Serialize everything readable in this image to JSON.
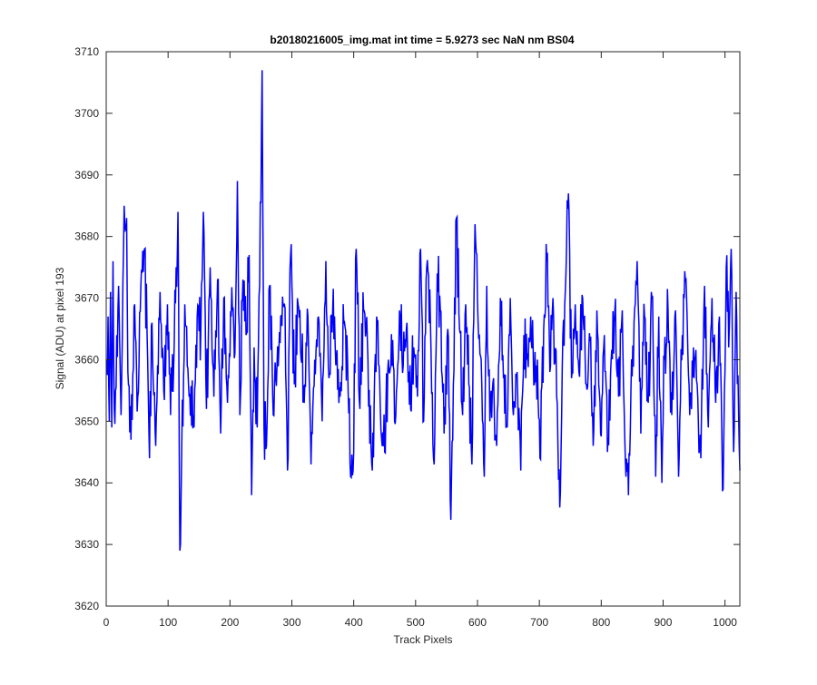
{
  "chart_data": {
    "type": "line",
    "title": "b20180216005_img.mat int time = 5.9273 sec  NaN nm BS04",
    "xlabel": "Track Pixels",
    "ylabel": "Signal (ADU) at pixel 193",
    "xlim": [
      0,
      1024
    ],
    "ylim": [
      3620,
      3710
    ],
    "xticks": [
      0,
      100,
      200,
      300,
      400,
      500,
      600,
      700,
      800,
      900,
      1000
    ],
    "yticks": [
      3620,
      3630,
      3640,
      3650,
      3660,
      3670,
      3680,
      3690,
      3700,
      3710
    ],
    "grid": false,
    "legend": "none",
    "series": [
      {
        "color": "#0000ff",
        "x_start": 1,
        "x_step": 1,
        "n_points": 1024,
        "baseline": 3662,
        "y_points": [
          [
            1,
            3660
          ],
          [
            3,
            3667
          ],
          [
            5,
            3650
          ],
          [
            7,
            3671
          ],
          [
            9,
            3649
          ],
          [
            11,
            3676
          ],
          [
            13,
            3652
          ],
          [
            20,
            3672
          ],
          [
            24,
            3651
          ],
          [
            28,
            3678
          ],
          [
            31,
            3681
          ],
          [
            33,
            3683
          ],
          [
            35,
            3658
          ],
          [
            40,
            3647
          ],
          [
            46,
            3669
          ],
          [
            51,
            3654
          ],
          [
            56,
            3672
          ],
          [
            62,
            3678
          ],
          [
            67,
            3660
          ],
          [
            70,
            3644
          ],
          [
            74,
            3666
          ],
          [
            80,
            3646
          ],
          [
            87,
            3671
          ],
          [
            93,
            3655
          ],
          [
            99,
            3669
          ],
          [
            104,
            3651
          ],
          [
            110,
            3663
          ],
          [
            116,
            3684
          ],
          [
            119,
            3629
          ],
          [
            122,
            3645
          ],
          [
            127,
            3669
          ],
          [
            134,
            3654
          ],
          [
            141,
            3651
          ],
          [
            147,
            3667
          ],
          [
            153,
            3665
          ],
          [
            157,
            3684
          ],
          [
            162,
            3652
          ],
          [
            168,
            3675
          ],
          [
            174,
            3654
          ],
          [
            180,
            3673
          ],
          [
            185,
            3648
          ],
          [
            190,
            3670
          ],
          [
            196,
            3653
          ],
          [
            202,
            3667
          ],
          [
            208,
            3661
          ],
          [
            212,
            3689
          ],
          [
            216,
            3651
          ],
          [
            221,
            3673
          ],
          [
            226,
            3664
          ],
          [
            231,
            3677
          ],
          [
            235,
            3638
          ],
          [
            239,
            3662
          ],
          [
            244,
            3649
          ],
          [
            248,
            3672
          ],
          [
            252,
            3707
          ],
          [
            255,
            3649
          ],
          [
            259,
            3646
          ],
          [
            264,
            3672
          ],
          [
            270,
            3651
          ],
          [
            276,
            3659
          ],
          [
            282,
            3667
          ],
          [
            288,
            3669
          ],
          [
            293,
            3642
          ],
          [
            298,
            3677
          ],
          [
            304,
            3656
          ],
          [
            310,
            3669
          ],
          [
            315,
            3660
          ],
          [
            321,
            3656
          ],
          [
            326,
            3667
          ],
          [
            331,
            3643
          ],
          [
            337,
            3660
          ],
          [
            343,
            3667
          ],
          [
            349,
            3650
          ],
          [
            355,
            3676
          ],
          [
            360,
            3657
          ],
          [
            366,
            3668
          ],
          [
            372,
            3660
          ],
          [
            378,
            3654
          ],
          [
            384,
            3666
          ],
          [
            390,
            3660
          ],
          [
            395,
            3641
          ],
          [
            399,
            3642
          ],
          [
            404,
            3678
          ],
          [
            410,
            3652
          ],
          [
            416,
            3668
          ],
          [
            423,
            3660
          ],
          [
            430,
            3642
          ],
          [
            437,
            3667
          ],
          [
            443,
            3652
          ],
          [
            450,
            3645
          ],
          [
            456,
            3660
          ],
          [
            462,
            3659
          ],
          [
            468,
            3651
          ],
          [
            474,
            3668
          ],
          [
            480,
            3659
          ],
          [
            486,
            3666
          ],
          [
            492,
            3652
          ],
          [
            497,
            3662
          ],
          [
            503,
            3654
          ],
          [
            508,
            3678
          ],
          [
            513,
            3650
          ],
          [
            518,
            3675
          ],
          [
            524,
            3666
          ],
          [
            530,
            3643
          ],
          [
            535,
            3674
          ],
          [
            540,
            3668
          ],
          [
            546,
            3648
          ],
          [
            552,
            3665
          ],
          [
            557,
            3634
          ],
          [
            561,
            3656
          ],
          [
            566,
            3683
          ],
          [
            571,
            3665
          ],
          [
            576,
            3651
          ],
          [
            581,
            3669
          ],
          [
            586,
            3656
          ],
          [
            591,
            3643
          ],
          [
            596,
            3682
          ],
          [
            601,
            3666
          ],
          [
            606,
            3660
          ],
          [
            611,
            3641
          ],
          [
            615,
            3672
          ],
          [
            620,
            3650
          ],
          [
            626,
            3657
          ],
          [
            631,
            3646
          ],
          [
            637,
            3670
          ],
          [
            642,
            3657
          ],
          [
            648,
            3649
          ],
          [
            653,
            3670
          ],
          [
            658,
            3651
          ],
          [
            664,
            3658
          ],
          [
            670,
            3642
          ],
          [
            675,
            3664
          ],
          [
            680,
            3660
          ],
          [
            686,
            3667
          ],
          [
            692,
            3656
          ],
          [
            697,
            3660
          ],
          [
            701,
            3644
          ],
          [
            707,
            3665
          ],
          [
            712,
            3676
          ],
          [
            717,
            3658
          ],
          [
            722,
            3670
          ],
          [
            728,
            3654
          ],
          [
            733,
            3636
          ],
          [
            738,
            3664
          ],
          [
            743,
            3674
          ],
          [
            747,
            3687
          ],
          [
            752,
            3657
          ],
          [
            758,
            3669
          ],
          [
            764,
            3658
          ],
          [
            770,
            3670
          ],
          [
            776,
            3656
          ],
          [
            782,
            3663
          ],
          [
            787,
            3646
          ],
          [
            793,
            3668
          ],
          [
            799,
            3648
          ],
          [
            805,
            3664
          ],
          [
            810,
            3645
          ],
          [
            816,
            3660
          ],
          [
            822,
            3668
          ],
          [
            828,
            3654
          ],
          [
            834,
            3668
          ],
          [
            840,
            3641
          ],
          [
            844,
            3638
          ],
          [
            848,
            3655
          ],
          [
            853,
            3666
          ],
          [
            858,
            3676
          ],
          [
            864,
            3648
          ],
          [
            870,
            3667
          ],
          [
            876,
            3653
          ],
          [
            882,
            3670
          ],
          [
            888,
            3641
          ],
          [
            893,
            3667
          ],
          [
            898,
            3640
          ],
          [
            902,
            3660
          ],
          [
            908,
            3668
          ],
          [
            914,
            3651
          ],
          [
            920,
            3668
          ],
          [
            925,
            3641
          ],
          [
            931,
            3664
          ],
          [
            937,
            3673
          ],
          [
            943,
            3651
          ],
          [
            949,
            3662
          ],
          [
            955,
            3656
          ],
          [
            961,
            3644
          ],
          [
            967,
            3672
          ],
          [
            973,
            3649
          ],
          [
            979,
            3670
          ],
          [
            985,
            3653
          ],
          [
            991,
            3667
          ],
          [
            997,
            3639
          ],
          [
            1002,
            3675
          ],
          [
            1006,
            3662
          ],
          [
            1010,
            3678
          ],
          [
            1014,
            3645
          ],
          [
            1018,
            3671
          ],
          [
            1024,
            3642
          ]
        ]
      }
    ]
  }
}
